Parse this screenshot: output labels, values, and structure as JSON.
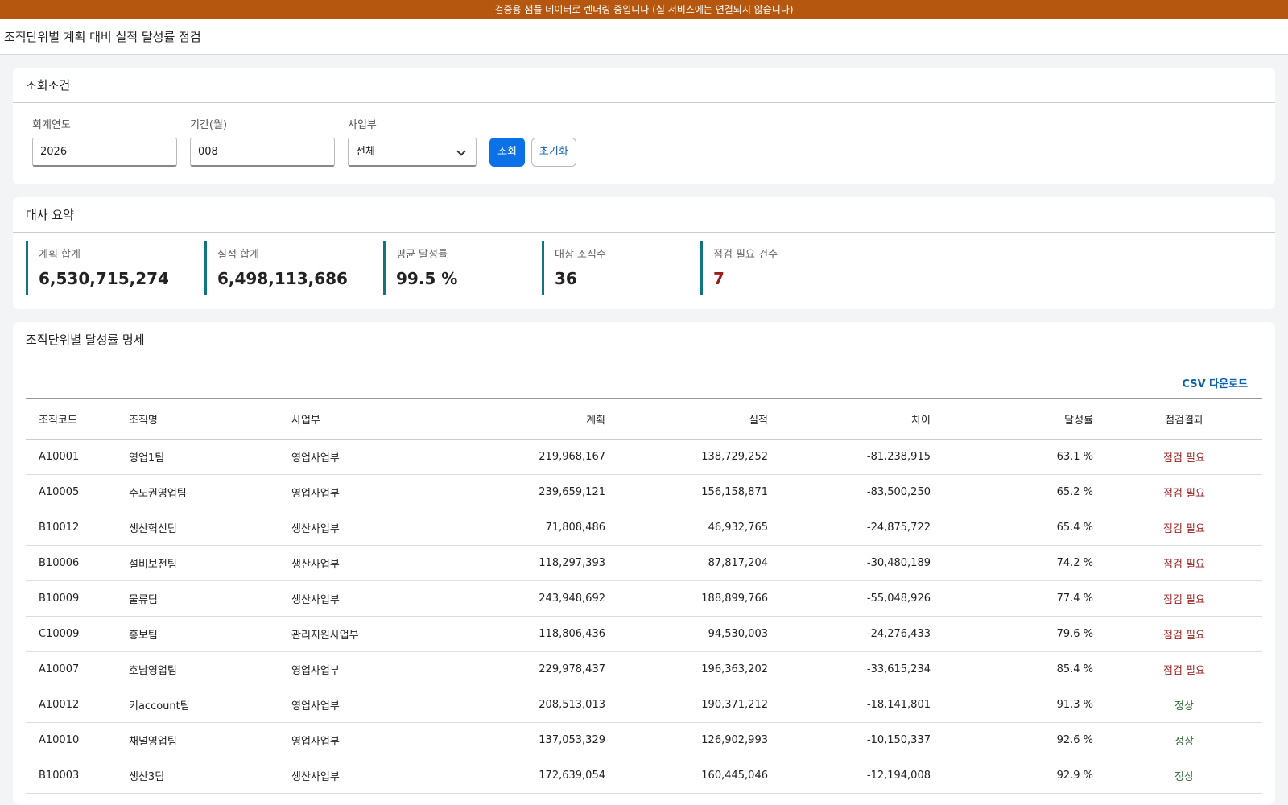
{
  "banner": "검증용 샘플 데이터로 렌더링 중입니다 (실 서비스에는 연결되지 않습니다)",
  "header": {
    "title": "조직단위별 계획 대비 실적 달성률 점검"
  },
  "filter": {
    "title": "조회조건",
    "fields": [
      {
        "label": "회계연도",
        "value": "2026"
      },
      {
        "label": "기간(월)",
        "value": "008"
      },
      {
        "label": "사업부",
        "value": "전체"
      }
    ],
    "buttons": [
      "조회",
      "초기화"
    ]
  },
  "summary": {
    "title": "대사 요약",
    "cards": [
      {
        "label": "계획 합계",
        "value": "6,530,715,274"
      },
      {
        "label": "실적 합계",
        "value": "6,498,113,686"
      },
      {
        "label": "평균 달성률",
        "value": "99.5 %"
      },
      {
        "label": "대상 조직수",
        "value": "36"
      },
      {
        "label": "점검 필요 건수",
        "value": "7"
      }
    ]
  },
  "detail": {
    "title": "조직단위별 달성률 명세",
    "csv": "CSV 다운로드",
    "table": {
      "columns": [
        "조직코드",
        "조직명",
        "사업부",
        "계획",
        "실적",
        "차이",
        "달성률",
        "점검결과"
      ],
      "rows": [
        [
          "A10001",
          "영업1팀",
          "영업사업부",
          "219,968,167",
          "138,729,252",
          "-81,238,915",
          "63.1 %",
          "점검 필요"
        ],
        [
          "A10005",
          "수도권영업팀",
          "영업사업부",
          "239,659,121",
          "156,158,871",
          "-83,500,250",
          "65.2 %",
          "점검 필요"
        ],
        [
          "B10012",
          "생산혁신팀",
          "생산사업부",
          "71,808,486",
          "46,932,765",
          "-24,875,722",
          "65.4 %",
          "점검 필요"
        ],
        [
          "B10006",
          "설비보전팀",
          "생산사업부",
          "118,297,393",
          "87,817,204",
          "-30,480,189",
          "74.2 %",
          "점검 필요"
        ],
        [
          "B10009",
          "물류팀",
          "생산사업부",
          "243,948,692",
          "188,899,766",
          "-55,048,926",
          "77.4 %",
          "점검 필요"
        ],
        [
          "C10009",
          "홍보팀",
          "관리지원사업부",
          "118,806,436",
          "94,530,003",
          "-24,276,433",
          "79.6 %",
          "점검 필요"
        ],
        [
          "A10007",
          "호남영업팀",
          "영업사업부",
          "229,978,437",
          "196,363,202",
          "-33,615,234",
          "85.4 %",
          "점검 필요"
        ],
        [
          "A10012",
          "키account팀",
          "영업사업부",
          "208,513,013",
          "190,371,212",
          "-18,141,801",
          "91.3 %",
          "정상"
        ],
        [
          "A10010",
          "채널영업팀",
          "영업사업부",
          "137,053,329",
          "126,902,993",
          "-10,150,337",
          "92.6 %",
          "정상"
        ],
        [
          "B10003",
          "생산3팀",
          "생산사업부",
          "172,639,054",
          "160,445,046",
          "-12,194,008",
          "92.9 %",
          "정상"
        ]
      ]
    }
  }
}
